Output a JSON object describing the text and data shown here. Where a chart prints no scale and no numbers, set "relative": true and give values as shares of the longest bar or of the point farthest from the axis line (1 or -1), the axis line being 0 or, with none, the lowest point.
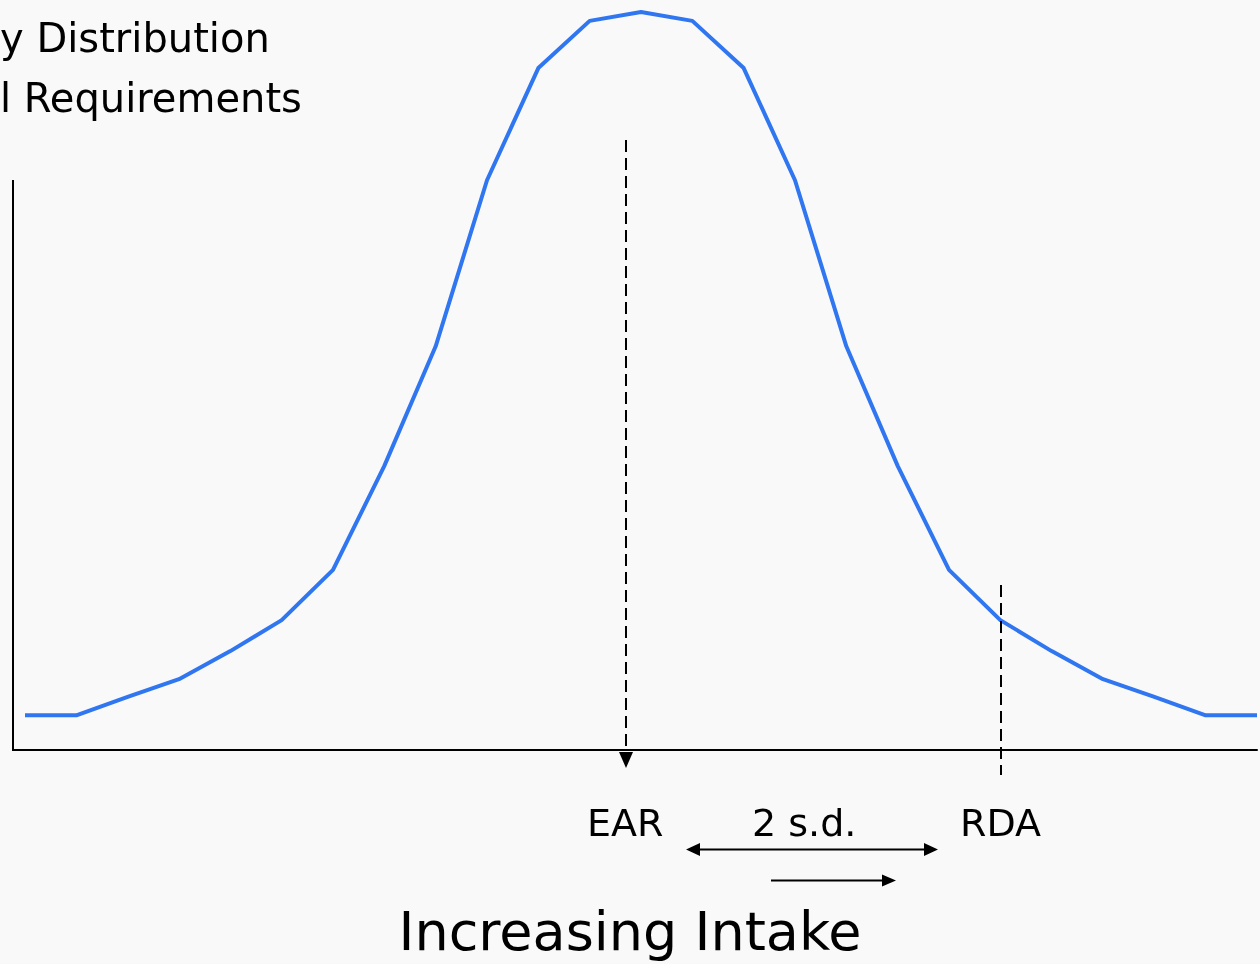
{
  "chart_data": {
    "type": "line",
    "title": "y Distribution",
    "subtitle": "l Requirements",
    "xlabel": "Increasing Intake",
    "relative": true,
    "marker": "none",
    "line_style": "solid",
    "categories": [
      null,
      null,
      null,
      null,
      null,
      null,
      null,
      null,
      null,
      null,
      null,
      null,
      null,
      null,
      null,
      null,
      null,
      null,
      null,
      null,
      null,
      null,
      null,
      null,
      null
    ],
    "series": [
      {
        "color": "#2f76f0",
        "values": [
          0.047,
          0.047,
          0.072,
          0.096,
          0.134,
          0.176,
          0.244,
          0.385,
          0.547,
          0.772,
          0.924,
          0.988,
          1,
          0.988,
          0.924,
          0.772,
          0.547,
          0.385,
          0.244,
          0.176,
          0.134,
          0.096,
          0.072,
          0.047,
          0.047
        ]
      }
    ],
    "annotations": [
      "EAR",
      "2 s.d.",
      "RDA"
    ]
  }
}
